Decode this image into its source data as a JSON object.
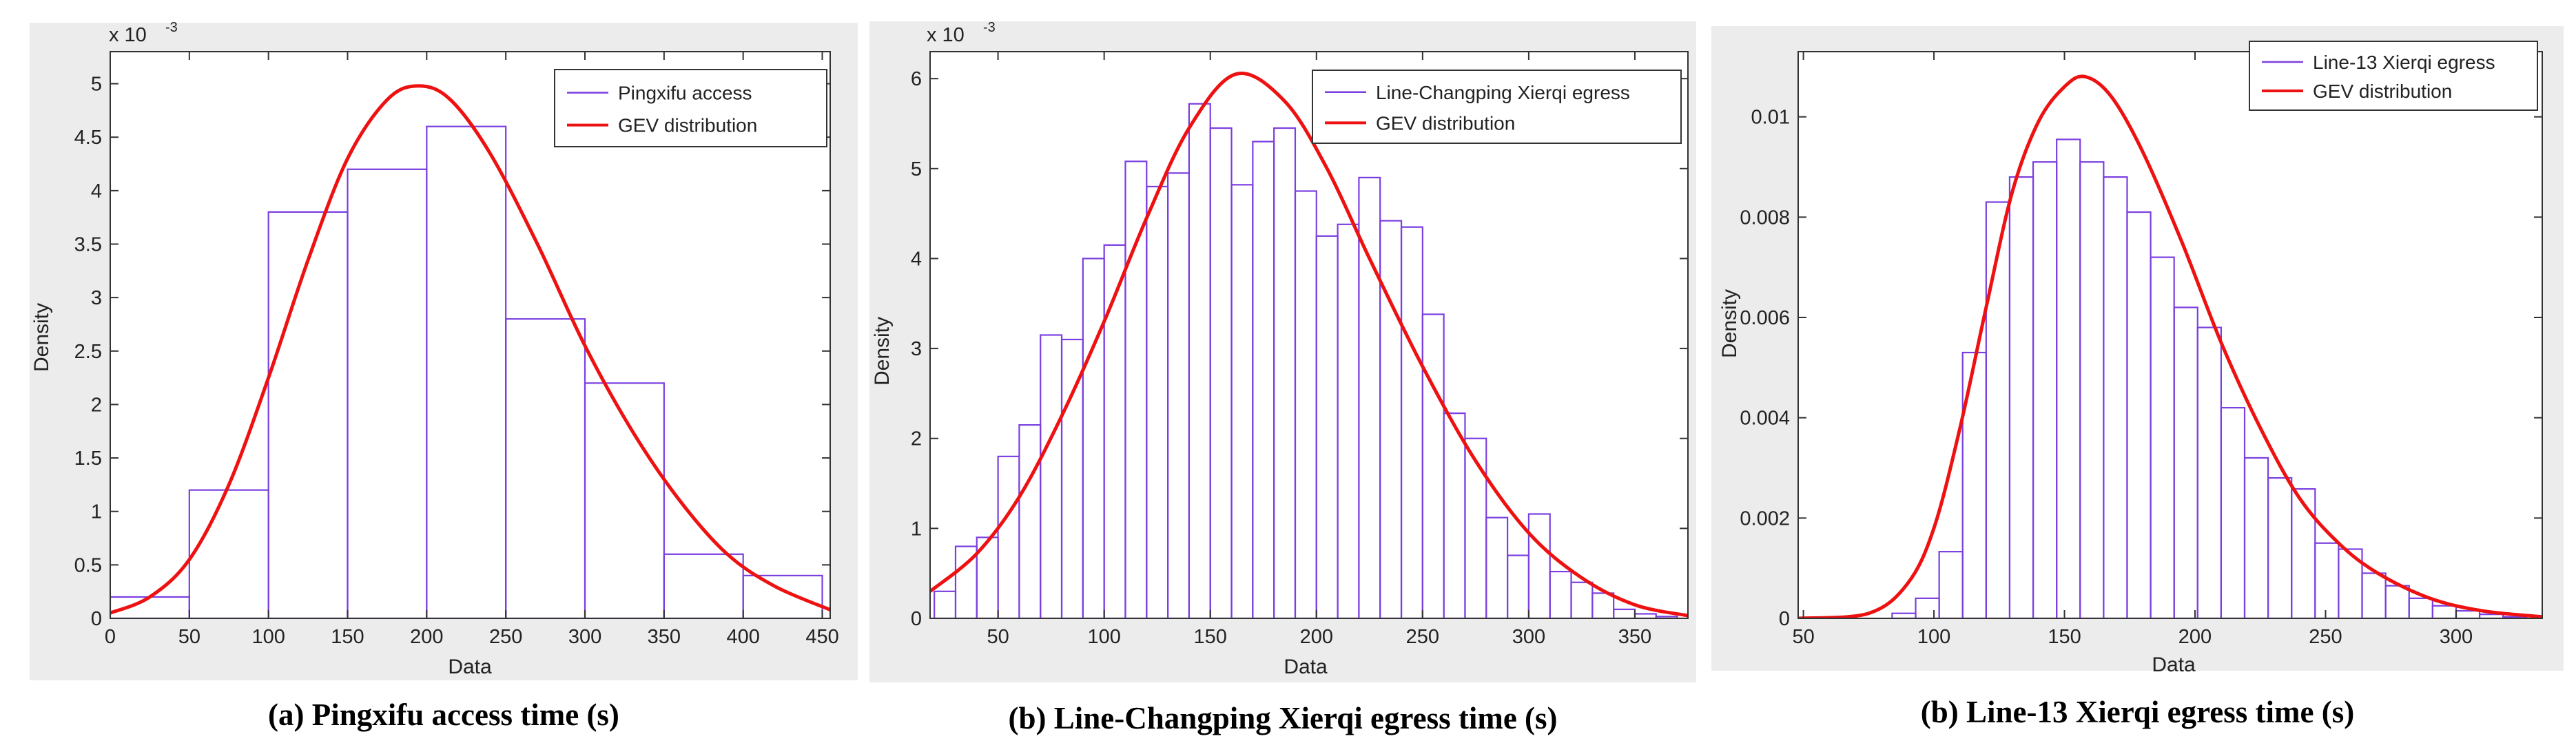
{
  "colors": {
    "hist": "#7b3fe0",
    "fit": "#ee1111",
    "panel_bg": "#ececec",
    "plot_bg": "#ffffff"
  },
  "chart_data": [
    {
      "type": "bar",
      "subtype": "histogram-with-fit",
      "caption": "(a) Pingxifu access time (s)",
      "xlabel": "Data",
      "ylabel": "Density",
      "yexponent": "x 10",
      "yexponent_power": "-3",
      "xlim": [
        0,
        455
      ],
      "ylim": [
        0,
        5.3
      ],
      "xticks": [
        0,
        50,
        100,
        150,
        200,
        250,
        300,
        350,
        400,
        450
      ],
      "yticks": [
        0,
        0.5,
        1,
        1.5,
        2,
        2.5,
        3,
        3.5,
        4,
        4.5,
        5
      ],
      "bin_width": 50,
      "series": [
        {
          "name": "Pingxifu access",
          "bin_starts": [
            0,
            50,
            100,
            150,
            200,
            250,
            300,
            350,
            400
          ],
          "values": [
            0.2,
            1.2,
            3.8,
            4.2,
            4.6,
            2.8,
            2.2,
            0.6,
            0.4
          ]
        },
        {
          "name": "GEV distribution",
          "x": [
            0,
            25,
            50,
            75,
            100,
            125,
            150,
            175,
            195,
            215,
            240,
            270,
            300,
            330,
            360,
            390,
            420,
            455
          ],
          "values": [
            0.05,
            0.2,
            0.55,
            1.25,
            2.25,
            3.35,
            4.3,
            4.85,
            4.98,
            4.85,
            4.35,
            3.5,
            2.55,
            1.75,
            1.1,
            0.6,
            0.3,
            0.08
          ]
        }
      ],
      "legend": "top-right"
    },
    {
      "type": "bar",
      "subtype": "histogram-with-fit",
      "caption": "(b) Line-Changping Xierqi egress time (s)",
      "xlabel": "Data",
      "ylabel": "Density",
      "yexponent": "x 10",
      "yexponent_power": "-3",
      "xlim": [
        18,
        375
      ],
      "ylim": [
        0,
        6.3
      ],
      "xticks": [
        50,
        100,
        150,
        200,
        250,
        300,
        350
      ],
      "yticks": [
        0,
        1,
        2,
        3,
        4,
        5,
        6
      ],
      "bin_width": 10,
      "series": [
        {
          "name": "Line-Changping Xierqi egress",
          "bin_starts": [
            20,
            30,
            40,
            50,
            60,
            70,
            80,
            90,
            100,
            110,
            120,
            130,
            140,
            150,
            160,
            170,
            180,
            190,
            200,
            210,
            220,
            230,
            240,
            250,
            260,
            270,
            280,
            290,
            300,
            310,
            320,
            330,
            340,
            350,
            360
          ],
          "values": [
            0.3,
            0.8,
            0.9,
            1.8,
            2.15,
            3.15,
            3.1,
            4.0,
            4.15,
            5.08,
            4.8,
            4.95,
            5.72,
            5.45,
            4.82,
            5.3,
            5.45,
            4.75,
            4.25,
            4.38,
            4.9,
            4.42,
            4.35,
            3.38,
            2.28,
            2.0,
            1.12,
            0.7,
            1.16,
            0.52,
            0.4,
            0.28,
            0.1,
            0.05,
            0.02
          ]
        },
        {
          "name": "GEV distribution",
          "x": [
            18,
            40,
            60,
            80,
            100,
            120,
            140,
            162,
            185,
            205,
            225,
            250,
            275,
            300,
            325,
            350,
            375
          ],
          "values": [
            0.3,
            0.72,
            1.35,
            2.25,
            3.3,
            4.45,
            5.45,
            6.05,
            5.75,
            5.0,
            4.0,
            2.8,
            1.75,
            0.95,
            0.45,
            0.15,
            0.03
          ]
        }
      ],
      "legend": "top-right"
    },
    {
      "type": "bar",
      "subtype": "histogram-with-fit",
      "caption": "(b) Line-13 Xierqi egress time (s)",
      "xlabel": "Data",
      "ylabel": "Density",
      "xlim": [
        48,
        333
      ],
      "ylim": [
        0,
        0.0113
      ],
      "xticks": [
        50,
        100,
        150,
        200,
        250,
        300
      ],
      "xtick_labels": [
        "50",
        "100",
        "150",
        "200",
        "250",
        "300"
      ],
      "yticks": [
        0,
        0.002,
        0.004,
        0.006,
        0.008,
        0.01
      ],
      "ytick_labels": [
        "0",
        "0.002",
        "0.004",
        "0.006",
        "0.008",
        "0.01"
      ],
      "bin_width": 9,
      "series": [
        {
          "name": "Line-13 Xierqi egress",
          "bin_starts": [
            48,
            57,
            66,
            75,
            84,
            93,
            102,
            111,
            120,
            129,
            138,
            147,
            156,
            165,
            174,
            183,
            192,
            201,
            210,
            219,
            228,
            237,
            246,
            255,
            264,
            273,
            282,
            291,
            300,
            309,
            318
          ],
          "values": [
            0,
            0,
            0,
            0,
            0.0001,
            0.0004,
            0.00133,
            0.0053,
            0.0083,
            0.0088,
            0.0091,
            0.00955,
            0.0091,
            0.0088,
            0.0081,
            0.0072,
            0.0062,
            0.0058,
            0.0042,
            0.0032,
            0.0028,
            0.00258,
            0.0015,
            0.00138,
            0.0009,
            0.00065,
            0.0004,
            0.00025,
            0.00015,
            8e-05,
            3e-05
          ]
        },
        {
          "name": "GEV distribution",
          "x": [
            48,
            75,
            90,
            100,
            110,
            120,
            130,
            140,
            150,
            158,
            168,
            180,
            195,
            210,
            225,
            240,
            255,
            270,
            290,
            310,
            333
          ],
          "values": [
            0,
            0.0001,
            0.0007,
            0.0018,
            0.0038,
            0.0062,
            0.0085,
            0.0099,
            0.0106,
            0.0108,
            0.0104,
            0.0093,
            0.0075,
            0.0055,
            0.0038,
            0.0024,
            0.0015,
            0.0009,
            0.0004,
            0.00015,
            3e-05
          ]
        }
      ],
      "legend": "top-right"
    }
  ]
}
